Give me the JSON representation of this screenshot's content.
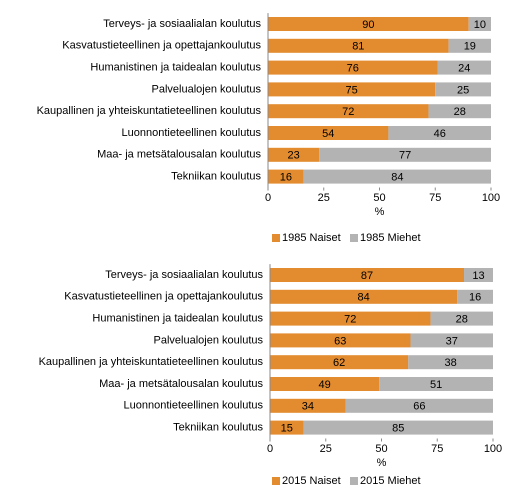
{
  "chart_data": [
    {
      "type": "stacked-bar-horizontal",
      "categories": [
        "Terveys- ja sosiaalialan koulutus",
        "Kasvatustieteellinen ja opettajankoulutus",
        "Humanistinen ja taidealan koulutus",
        "Palvelualojen koulutus",
        "Kaupallinen ja yhteiskuntatieteellinen koulutus",
        "Luonnontieteellinen koulutus",
        "Maa- ja metsätalousalan koulutus",
        "Tekniikan koulutus"
      ],
      "series": [
        {
          "name": "1985 Naiset",
          "color": "#e38b2f",
          "values": [
            90,
            81,
            76,
            75,
            72,
            54,
            23,
            16
          ]
        },
        {
          "name": "1985 Miehet",
          "color": "#b3b3b3",
          "values": [
            10,
            19,
            24,
            25,
            28,
            46,
            77,
            84
          ]
        }
      ],
      "xlim": [
        0,
        100
      ],
      "xticks": [
        0,
        25,
        50,
        75,
        100
      ],
      "xlabel": "%"
    },
    {
      "type": "stacked-bar-horizontal",
      "categories": [
        "Terveys- ja sosiaalialan koulutus",
        "Kasvatustieteellinen ja opettajankoulutus",
        "Humanistinen ja taidealan koulutus",
        "Palvelualojen koulutus",
        "Kaupallinen ja yhteiskuntatieteellinen koulutus",
        "Maa- ja metsätalousalan koulutus",
        "Luonnontieteellinen koulutus",
        "Tekniikan koulutus"
      ],
      "series": [
        {
          "name": "2015 Naiset",
          "color": "#e38b2f",
          "values": [
            87,
            84,
            72,
            63,
            62,
            49,
            34,
            15
          ]
        },
        {
          "name": "2015 Miehet",
          "color": "#b3b3b3",
          "values": [
            13,
            16,
            28,
            37,
            38,
            51,
            66,
            85
          ]
        }
      ],
      "xlim": [
        0,
        100
      ],
      "xticks": [
        0,
        25,
        50,
        75,
        100
      ],
      "xlabel": "%"
    }
  ]
}
